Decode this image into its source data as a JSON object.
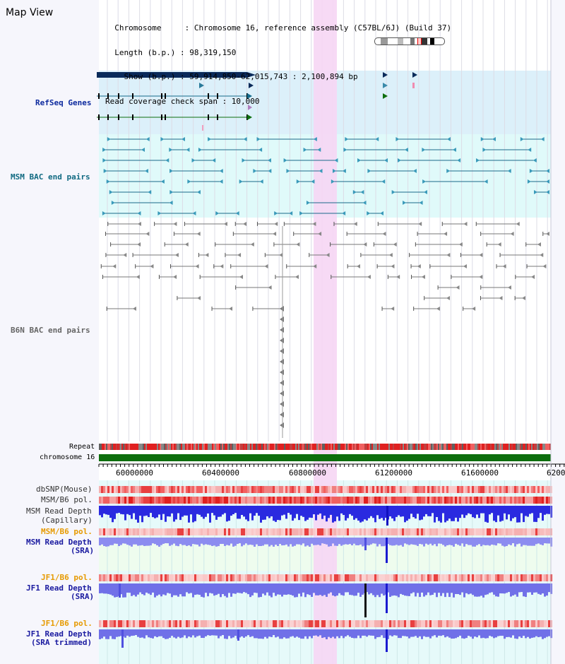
{
  "header": {
    "title": "Map View",
    "info_lines": [
      "  Chromosome     : Chromosome 16, reference assembly (C57BL/6J) (Build 37)",
      "  Length (b.p.) : 98,319,150",
      "    Show (b.p.) : 59,914,850-62,015,743 : 2,100,894 bp",
      "Read coverage check span : 10,000"
    ]
  },
  "tracks": {
    "refseq": "RefSeq Genes",
    "msm_bac": "MSM BAC end pairs",
    "b6n_bac": "B6N BAC end pairs",
    "repeat": "Repeat",
    "chromosome": "chromosome 16",
    "dbsnp": "dbSNP(Mouse)",
    "msm_b6_pol_1": "MSM/B6 pol.",
    "msm_read_depth_cap": "MSM Read Depth",
    "msm_read_depth_cap_sub": "(Capillary)",
    "msm_b6_pol_2": "MSM/B6 pol.",
    "msm_read_depth_sra": "MSM Read Depth",
    "msm_read_depth_sra_sub": "(SRA)",
    "jf1_b6_pol_1": "JF1/B6 pol.",
    "jf1_read_depth_sra": "JF1 Read Depth",
    "jf1_read_depth_sra_sub": "(SRA)",
    "jf1_b6_pol_2": "JF1/B6 pol.",
    "jf1_read_depth_trim": "JF1 Read Depth",
    "jf1_read_depth_trim_sub": "(SRA trimmed)"
  },
  "axis": {
    "ticks": [
      "60000000",
      "60400000",
      "60800000",
      "61200000",
      "61600000",
      "6200"
    ]
  },
  "colors": {
    "refseq_label": "#0d2a9e",
    "msm_label": "#116a82",
    "b6n_label": "#666666",
    "pol_orange": "#e69a00",
    "depth_blue": "#1a1aa0",
    "highlight": "#f6d6f4",
    "refseq_bg": "#dcf0fa",
    "msm_bg": "#e0fafa",
    "chrom_green": "#0d6e0d"
  }
}
